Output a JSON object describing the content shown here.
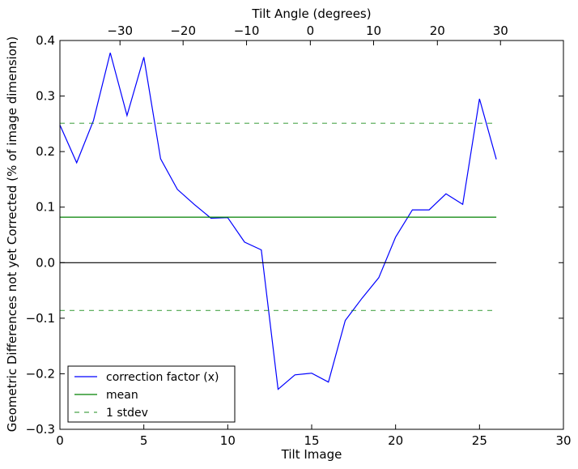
{
  "chart_data": {
    "type": "line",
    "xlabel": "Tilt Image",
    "ylabel": "Geometric Differences not yet Corrected (% of image dimension)",
    "top_xlabel": "Tilt Angle (degrees)",
    "xlim": [
      0,
      30
    ],
    "ylim": [
      -0.3,
      0.4
    ],
    "xticks": [
      0,
      5,
      10,
      15,
      20,
      25,
      30
    ],
    "yticks": [
      -0.3,
      -0.2,
      -0.1,
      0.0,
      0.1,
      0.2,
      0.3,
      0.4
    ],
    "xtick_labels": [
      "0",
      "5",
      "10",
      "15",
      "20",
      "25",
      "30"
    ],
    "ytick_labels": [
      "−0.3",
      "−0.2",
      "−0.1",
      "0.0",
      "0.1",
      "0.2",
      "0.3",
      "0.4"
    ],
    "top_ticks": [
      {
        "x": 3.58,
        "label": "−30"
      },
      {
        "x": 7.34,
        "label": "−20"
      },
      {
        "x": 11.12,
        "label": "−10"
      },
      {
        "x": 14.92,
        "label": "0"
      },
      {
        "x": 18.69,
        "label": "10"
      },
      {
        "x": 22.49,
        "label": "20"
      },
      {
        "x": 26.25,
        "label": "30"
      }
    ],
    "series": [
      {
        "name": "correction factor (x)",
        "color": "#0000ff",
        "style": "solid",
        "x": [
          0,
          1,
          2,
          3,
          4,
          5,
          6,
          7,
          8,
          9,
          10,
          11,
          12,
          13,
          14,
          15,
          16,
          17,
          18,
          19,
          20,
          21,
          22,
          23,
          24,
          25,
          26
        ],
        "y": [
          0.248,
          0.18,
          0.256,
          0.378,
          0.265,
          0.37,
          0.187,
          0.132,
          0.105,
          0.08,
          0.081,
          0.037,
          0.023,
          -0.228,
          -0.202,
          -0.199,
          -0.215,
          -0.104,
          -0.064,
          -0.027,
          0.046,
          0.095,
          0.095,
          0.124,
          0.105,
          0.295,
          0.186
        ]
      },
      {
        "name": "mean",
        "color": "#008000",
        "style": "solid",
        "x": [
          0,
          26
        ],
        "y": [
          0.082,
          0.082
        ]
      },
      {
        "name": "1 stdev",
        "color": "#008000",
        "style": "dashed",
        "x": [
          0,
          26
        ],
        "y": [
          0.251,
          0.251
        ]
      },
      {
        "name": "",
        "color": "#008000",
        "style": "dashed",
        "x": [
          0,
          26
        ],
        "y": [
          -0.086,
          -0.086
        ]
      },
      {
        "name": "",
        "color": "#000000",
        "style": "solid",
        "x": [
          0,
          26
        ],
        "y": [
          0.0,
          0.0
        ]
      }
    ],
    "legend": {
      "placement": "lower-left",
      "entries": [
        {
          "label": "correction factor (x)",
          "color": "#0000ff",
          "style": "solid"
        },
        {
          "label": "mean",
          "color": "#008000",
          "style": "solid"
        },
        {
          "label": "1 stdev",
          "color": "#008000",
          "style": "dashed"
        }
      ]
    },
    "grid": false
  }
}
